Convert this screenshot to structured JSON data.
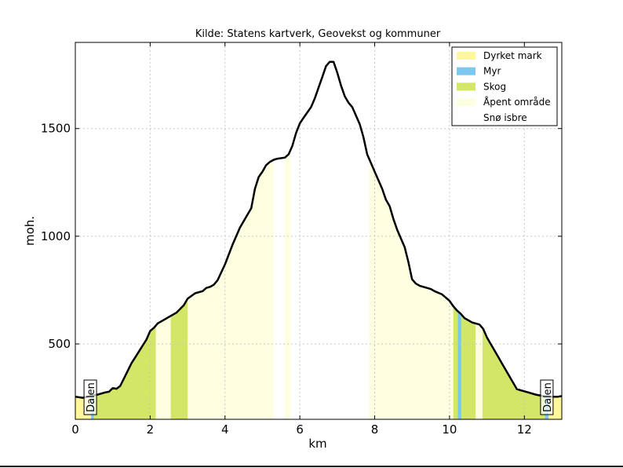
{
  "chart_data": {
    "type": "area",
    "title": "Kilde: Statens kartverk, Geovekst og kommuner",
    "xlabel": "km",
    "ylabel": "moh.",
    "xlim": [
      0,
      13
    ],
    "ylim": [
      150,
      1900
    ],
    "xticks": [
      "0",
      "2",
      "4",
      "6",
      "8",
      "10",
      "12"
    ],
    "xtick_values": [
      0,
      2,
      4,
      6,
      8,
      10,
      12
    ],
    "yticks": [
      "500",
      "1000",
      "1500"
    ],
    "ytick_values": [
      500,
      1000,
      1500
    ],
    "grid": true,
    "legend_position": "top-right",
    "legend": [
      {
        "label": "Dyrket mark",
        "color": "#fff799"
      },
      {
        "label": "Myr",
        "color": "#7fc6f0"
      },
      {
        "label": "Skog",
        "color": "#d4e668"
      },
      {
        "label": "Åpent område",
        "color": "#fefee0"
      },
      {
        "label": "Snø isbre",
        "color": "#ffffff"
      }
    ],
    "profile": {
      "x": [
        0,
        0.2,
        0.4,
        0.5,
        0.6,
        0.8,
        0.9,
        1.0,
        1.1,
        1.2,
        1.3,
        1.5,
        1.7,
        1.9,
        2.0,
        2.1,
        2.2,
        2.3,
        2.5,
        2.7,
        2.9,
        3.0,
        3.2,
        3.4,
        3.5,
        3.6,
        3.7,
        3.8,
        4.0,
        4.2,
        4.4,
        4.6,
        4.7,
        4.8,
        4.9,
        5.0,
        5.1,
        5.2,
        5.3,
        5.4,
        5.6,
        5.7,
        5.8,
        5.9,
        6.0,
        6.1,
        6.2,
        6.3,
        6.4,
        6.5,
        6.6,
        6.7,
        6.8,
        6.9,
        7.0,
        7.1,
        7.2,
        7.3,
        7.4,
        7.5,
        7.6,
        7.7,
        7.8,
        7.9,
        8.0,
        8.1,
        8.2,
        8.3,
        8.4,
        8.5,
        8.6,
        8.7,
        8.8,
        8.9,
        9.0,
        9.1,
        9.2,
        9.3,
        9.5,
        9.6,
        9.8,
        10.0,
        10.1,
        10.2,
        10.3,
        10.4,
        10.5,
        10.6,
        10.8,
        10.9,
        11.0,
        11.2,
        11.4,
        11.6,
        11.8,
        11.9,
        12.0,
        12.1,
        12.3,
        12.5,
        12.7,
        12.9,
        13.0
      ],
      "y": [
        255,
        250,
        258,
        262,
        265,
        275,
        278,
        295,
        292,
        305,
        340,
        410,
        465,
        520,
        560,
        575,
        595,
        605,
        625,
        645,
        680,
        710,
        735,
        745,
        760,
        765,
        775,
        795,
        870,
        960,
        1040,
        1100,
        1130,
        1220,
        1275,
        1300,
        1330,
        1345,
        1355,
        1360,
        1365,
        1380,
        1420,
        1480,
        1525,
        1550,
        1575,
        1600,
        1640,
        1690,
        1740,
        1790,
        1810,
        1810,
        1760,
        1700,
        1650,
        1620,
        1600,
        1560,
        1520,
        1460,
        1380,
        1340,
        1300,
        1260,
        1220,
        1170,
        1140,
        1080,
        1030,
        990,
        950,
        880,
        800,
        780,
        770,
        765,
        755,
        745,
        730,
        700,
        675,
        655,
        640,
        620,
        610,
        600,
        590,
        570,
        530,
        470,
        410,
        350,
        290,
        285,
        280,
        275,
        265,
        258,
        255,
        255,
        258
      ]
    },
    "landcover": [
      {
        "from": 0.0,
        "to": 0.42,
        "type": "Dyrket mark"
      },
      {
        "from": 0.42,
        "to": 0.5,
        "type": "Myr"
      },
      {
        "from": 0.5,
        "to": 2.15,
        "type": "Skog"
      },
      {
        "from": 2.15,
        "to": 2.55,
        "type": "Åpent område"
      },
      {
        "from": 2.55,
        "to": 3.0,
        "type": "Skog"
      },
      {
        "from": 3.0,
        "to": 5.3,
        "type": "Åpent område"
      },
      {
        "from": 5.3,
        "to": 5.6,
        "type": "Snø isbre"
      },
      {
        "from": 5.6,
        "to": 5.75,
        "type": "Åpent område"
      },
      {
        "from": 5.75,
        "to": 7.85,
        "type": "Snø isbre"
      },
      {
        "from": 7.85,
        "to": 10.1,
        "type": "Åpent område"
      },
      {
        "from": 10.1,
        "to": 10.22,
        "type": "Skog"
      },
      {
        "from": 10.22,
        "to": 10.32,
        "type": "Myr"
      },
      {
        "from": 10.32,
        "to": 10.7,
        "type": "Skog"
      },
      {
        "from": 10.7,
        "to": 10.88,
        "type": "Åpent område"
      },
      {
        "from": 10.88,
        "to": 12.55,
        "type": "Skog"
      },
      {
        "from": 12.55,
        "to": 12.65,
        "type": "Myr"
      },
      {
        "from": 12.65,
        "to": 13.0,
        "type": "Dyrket mark"
      }
    ],
    "markers": [
      {
        "x": 0.4,
        "label": "Dalen"
      },
      {
        "x": 12.6,
        "label": "Dalen"
      }
    ]
  }
}
